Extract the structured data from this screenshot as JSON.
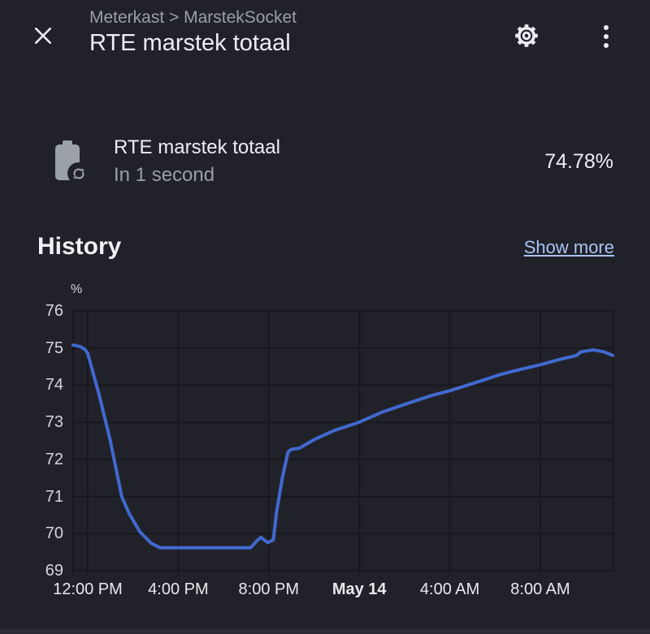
{
  "header": {
    "breadcrumb": "Meterkast > MarstekSocket",
    "title": "RTE marstek totaal",
    "icons": [
      "close-icon",
      "gear-icon",
      "kebab-menu-icon"
    ]
  },
  "entity": {
    "icon": "battery-sync-icon",
    "name": "RTE marstek totaal",
    "secondary": "In 1 second",
    "value": "74.78%"
  },
  "history": {
    "title": "History",
    "show_more_label": "Show more"
  },
  "colors": {
    "background": "#212229",
    "gridline": "#17181c",
    "line": "#4169d0",
    "text_primary": "#eceef2",
    "text_secondary": "#9a9ea6",
    "link": "#a8c3f5",
    "icon_gray": "#9ba1a8"
  },
  "chart_data": {
    "type": "line",
    "title": "History",
    "unit": "%",
    "ylabel": "%",
    "ylim": [
      69,
      76
    ],
    "yticks": [
      76,
      75,
      74,
      73,
      72,
      71,
      70,
      69
    ],
    "grid": true,
    "legend": false,
    "x_axis_note": "hours since 12:00 PM May 13; range shown ~11:20 AM May 13 to ~11:15 AM May 14",
    "x_range_hours": [
      -0.65,
      23.25
    ],
    "xticks": [
      {
        "t": 0,
        "label": "12:00 PM",
        "bold": false
      },
      {
        "t": 4,
        "label": "4:00 PM",
        "bold": false
      },
      {
        "t": 8,
        "label": "8:00 PM",
        "bold": false
      },
      {
        "t": 12,
        "label": "May 14",
        "bold": true
      },
      {
        "t": 16,
        "label": "4:00 AM",
        "bold": false
      },
      {
        "t": 20,
        "label": "8:00 AM",
        "bold": false
      }
    ],
    "series": [
      {
        "name": "RTE marstek totaal",
        "color": "#4169d0",
        "points": [
          [
            -0.65,
            75.08
          ],
          [
            -0.33,
            75.04
          ],
          [
            -0.12,
            74.96
          ],
          [
            0.0,
            74.85
          ],
          [
            0.5,
            73.75
          ],
          [
            1.0,
            72.5
          ],
          [
            1.5,
            71.0
          ],
          [
            1.82,
            70.55
          ],
          [
            2.3,
            70.05
          ],
          [
            2.8,
            69.74
          ],
          [
            3.2,
            69.62
          ],
          [
            7.2,
            69.62
          ],
          [
            7.5,
            69.82
          ],
          [
            7.65,
            69.9
          ],
          [
            7.95,
            69.76
          ],
          [
            8.2,
            69.83
          ],
          [
            8.35,
            70.6
          ],
          [
            8.6,
            71.5
          ],
          [
            8.85,
            72.2
          ],
          [
            9.0,
            72.27
          ],
          [
            9.35,
            72.3
          ],
          [
            10.0,
            72.53
          ],
          [
            10.9,
            72.78
          ],
          [
            12.0,
            73.0
          ],
          [
            13.0,
            73.27
          ],
          [
            14.1,
            73.5
          ],
          [
            15.2,
            73.72
          ],
          [
            16.0,
            73.85
          ],
          [
            17.2,
            74.08
          ],
          [
            18.2,
            74.28
          ],
          [
            19.1,
            74.42
          ],
          [
            20.0,
            74.55
          ],
          [
            20.9,
            74.7
          ],
          [
            21.6,
            74.8
          ],
          [
            21.8,
            74.9
          ],
          [
            22.35,
            74.95
          ],
          [
            22.8,
            74.9
          ],
          [
            23.2,
            74.8
          ]
        ]
      }
    ]
  }
}
